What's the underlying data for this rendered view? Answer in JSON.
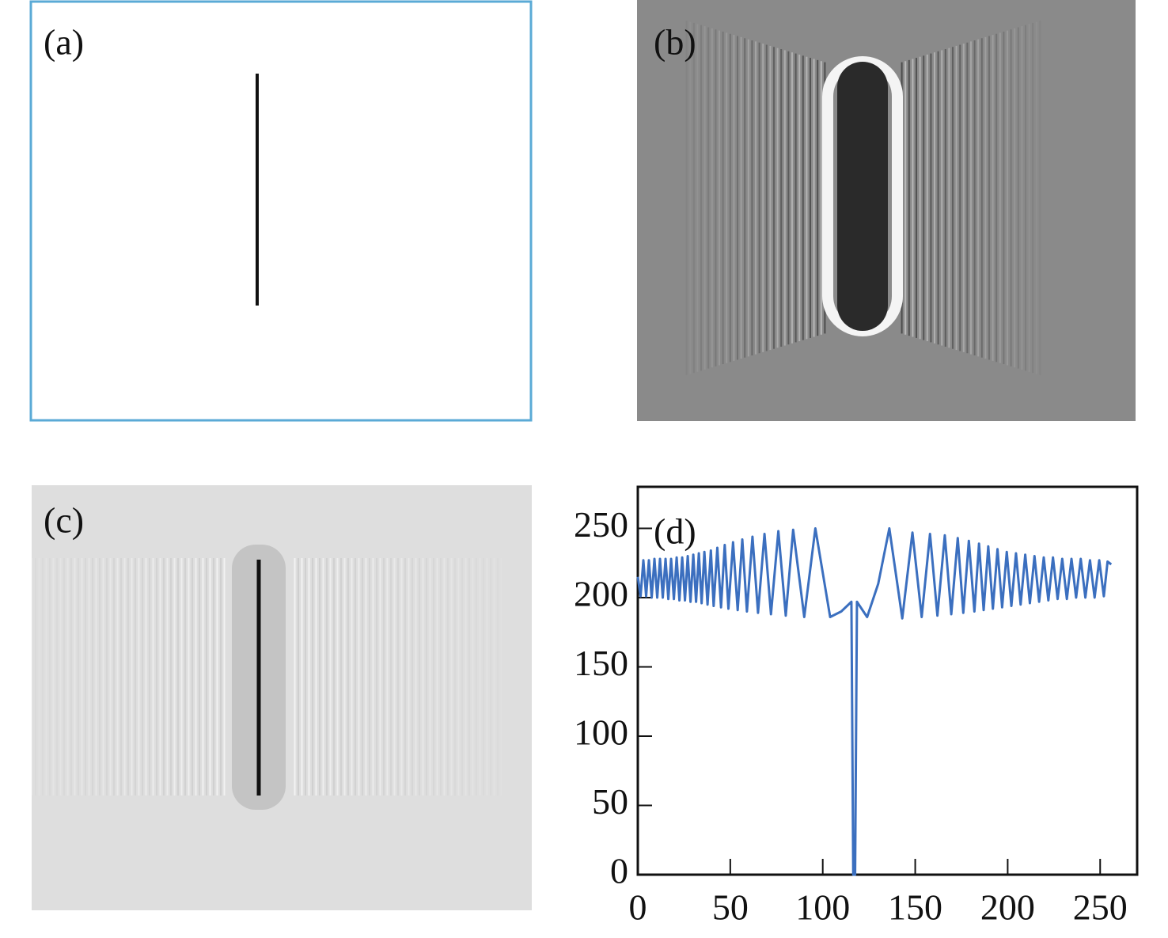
{
  "panels": [
    {
      "label": "(a)"
    },
    {
      "label": "(b)"
    },
    {
      "label": "(c)"
    }
  ],
  "chart_data": {
    "type": "line",
    "panel_label": "(d)",
    "xlim": [
      0,
      270
    ],
    "xticks": [
      0,
      50,
      100,
      150,
      200,
      250
    ],
    "ylim": [
      0,
      280
    ],
    "yticks": [
      0,
      50,
      100,
      150,
      200,
      250
    ],
    "series": [
      {
        "color": "#3b6fbf",
        "x": [
          0,
          1.5,
          3,
          4.5,
          6,
          7.5,
          9,
          10.5,
          12,
          13.5,
          15,
          16.5,
          18,
          19.5,
          21,
          22.5,
          24,
          25.5,
          27,
          28.5,
          30,
          31.5,
          33,
          34.5,
          36,
          37.7,
          39.5,
          41,
          43,
          45,
          47,
          49,
          51.5,
          54,
          56.5,
          59,
          62,
          65,
          68.5,
          72,
          76,
          80,
          84,
          90,
          96,
          104,
          110,
          115.5,
          116.5,
          117.5,
          118.5,
          124,
          130,
          136,
          143,
          148.5,
          153.5,
          158,
          162,
          166,
          169.5,
          173,
          176,
          179,
          182,
          184.5,
          187,
          189.5,
          192,
          194.5,
          197,
          199.5,
          202,
          204.5,
          207,
          209.5,
          212,
          214.5,
          217,
          219.5,
          222,
          224.5,
          227,
          229.5,
          232,
          234.5,
          237,
          239.5,
          242,
          244.5,
          247,
          249.5,
          252,
          254,
          256
        ],
        "values": [
          215,
          201,
          227,
          201,
          227,
          200,
          228,
          200,
          228,
          200,
          228,
          199,
          228,
          199,
          229,
          198,
          229,
          198,
          230,
          197,
          231,
          197,
          232,
          196,
          233,
          195,
          234,
          194,
          236,
          193,
          238,
          192,
          240,
          191,
          242,
          190,
          244,
          189,
          246,
          188,
          248,
          187,
          249,
          186,
          250,
          186,
          190,
          197,
          0,
          0,
          197,
          186,
          210,
          250,
          185,
          247,
          186,
          246,
          187,
          245,
          188,
          243,
          189,
          241,
          190,
          239,
          191,
          237,
          192,
          235,
          193,
          233,
          194,
          232,
          195,
          231,
          196,
          230,
          197,
          229,
          198,
          229,
          199,
          228,
          199,
          228,
          200,
          228,
          200,
          227,
          200,
          227,
          201,
          226,
          224
        ]
      }
    ]
  }
}
